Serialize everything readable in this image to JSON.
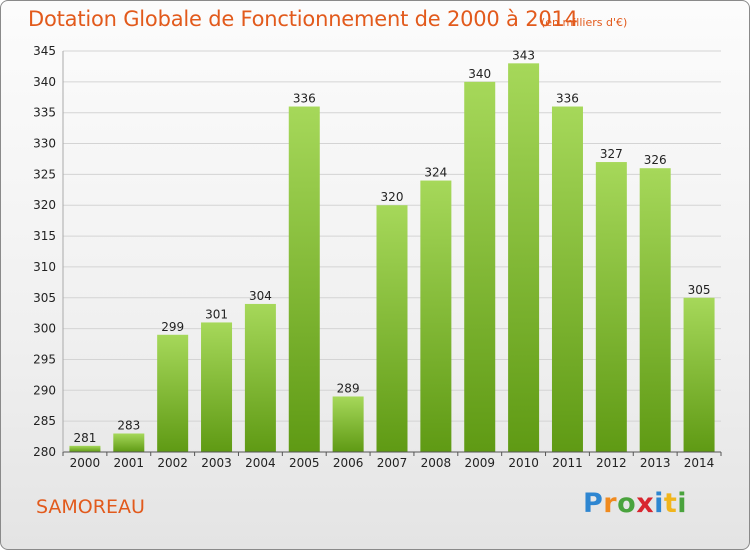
{
  "header": {
    "title": "Dotation Globale de Fonctionnement de 2000 à 2014",
    "subtitle": "(en milliers d'€)"
  },
  "footer": {
    "commune": "SAMOREAU",
    "logo_letters": [
      "P",
      "r",
      "o",
      "x",
      "i",
      "t",
      "i"
    ]
  },
  "colors": {
    "title": "#e25a1c",
    "bar_top": "#a6d85a",
    "bar_bottom": "#5f9a14",
    "grid": "#d4d4d4"
  },
  "chart_data": {
    "type": "bar",
    "title": "Dotation Globale de Fonctionnement de 2000 à 2014",
    "subtitle": "(en milliers d'€)",
    "xlabel": "",
    "ylabel": "",
    "categories": [
      "2000",
      "2001",
      "2002",
      "2003",
      "2004",
      "2005",
      "2006",
      "2007",
      "2008",
      "2009",
      "2010",
      "2011",
      "2012",
      "2013",
      "2014"
    ],
    "values": [
      281,
      283,
      299,
      301,
      304,
      336,
      289,
      320,
      324,
      340,
      343,
      336,
      327,
      326,
      305
    ],
    "ylim": [
      280,
      345
    ],
    "yticks": [
      280,
      285,
      290,
      295,
      300,
      305,
      310,
      315,
      320,
      325,
      330,
      335,
      340,
      345
    ],
    "grid": true,
    "data_labels": true
  }
}
